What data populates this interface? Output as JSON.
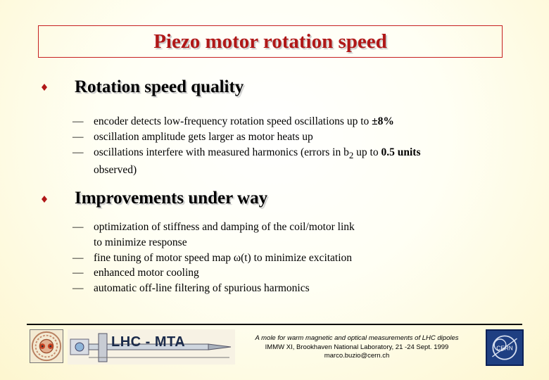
{
  "title": "Piezo motor rotation speed",
  "sections": [
    {
      "heading": "Rotation speed quality",
      "items": [
        {
          "lines": [
            {
              "pre": "encoder detects low-frequency rotation speed oscillations up to ",
              "value": "±8%"
            }
          ]
        },
        {
          "lines": [
            {
              "pre": "oscillation amplitude gets larger as motor heats up"
            }
          ]
        },
        {
          "lines": [
            {
              "pre": "oscillations interfere with measured harmonics (errors in b",
              "sub": "2",
              "mid": " up to ",
              "value": "0.5 units"
            },
            {
              "pre": "observed)"
            }
          ]
        }
      ]
    },
    {
      "heading": "Improvements under way",
      "items": [
        {
          "lines": [
            {
              "pre": "optimization of stiffness and damping of the coil/motor link"
            },
            {
              "pre": "to minimize response"
            }
          ]
        },
        {
          "lines": [
            {
              "pre": "fine tuning of motor speed map ω(t) to minimize excitation"
            }
          ]
        },
        {
          "lines": [
            {
              "pre": "enhanced motor cooling"
            }
          ]
        },
        {
          "lines": [
            {
              "pre": "automatic off-line filtering of spurious harmonics"
            }
          ]
        }
      ]
    }
  ],
  "footer": {
    "banner": "LHC - MTA",
    "line1": "A mole for warm magnetic and optical measurements of LHC dipoles",
    "line2": "IMMW XI, Brookhaven National Laboratory, 21 -24 Sept. 1999",
    "line3": "marco.buzio@cern.ch",
    "logo_right_text": "CERN"
  },
  "colors": {
    "title": "#b01818",
    "bullet": "#b01818",
    "title_border": "#c62020"
  }
}
